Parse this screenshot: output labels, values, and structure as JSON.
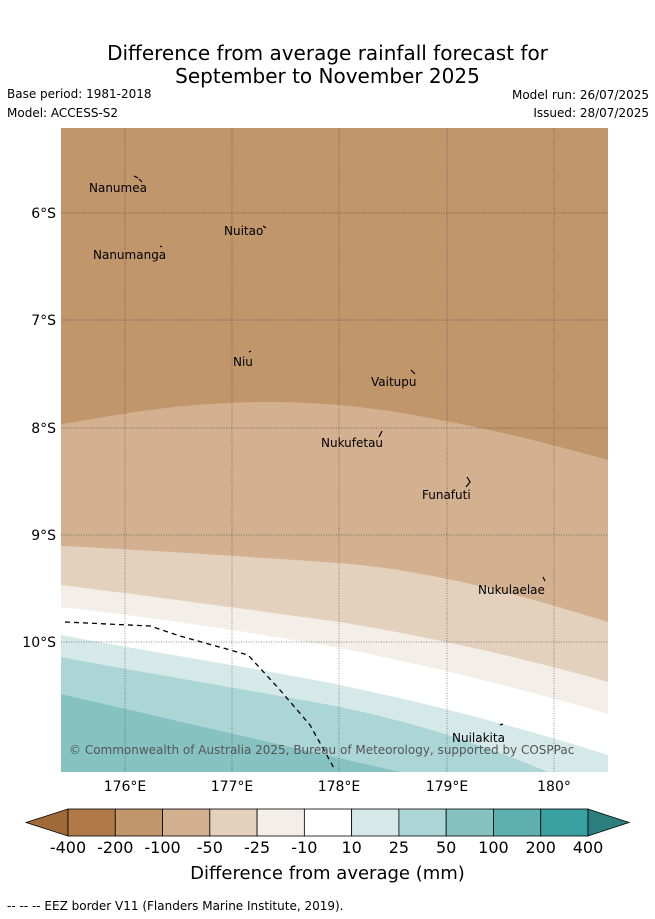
{
  "title_line1": "Difference from average rainfall forecast for",
  "title_line2": "September to November 2025",
  "base_period": "Base period: 1981-2018",
  "model": "Model: ACCESS-S2",
  "model_run": "Model run: 26/07/2025",
  "issued": "Issued: 28/07/2025",
  "lat_labels": [
    "6°S",
    "7°S",
    "8°S",
    "9°S",
    "10°S"
  ],
  "lon_labels": [
    "176°E",
    "177°E",
    "178°E",
    "179°E",
    "180°"
  ],
  "islands": [
    "Nanumea",
    "Nuitao",
    "Nanumanga",
    "Niu",
    "Vaitupu",
    "Nukufetau",
    "Funafuti",
    "Nukulaelae",
    "Nuilakita"
  ],
  "copyright": "© Commonwealth of Australia 2025, Bureau of Meteorology, supported by COSPPac",
  "colorbar": {
    "ticks": [
      "-400",
      "-200",
      "-100",
      "-50",
      "-25",
      "-10",
      "10",
      "25",
      "50",
      "100",
      "200",
      "400"
    ],
    "colors": [
      "#a06a38",
      "#b07a48",
      "#c0966a",
      "#d3b090",
      "#e3d0bd",
      "#f3eee8",
      "#ffffff",
      "#d6e9e9",
      "#acd6d6",
      "#86c2c2",
      "#5eb0b0",
      "#3aa0a0",
      "#2a7e7e"
    ],
    "label": "Difference from average (mm)"
  },
  "footnote": "-- -- -- EEZ border V11 (Flanders Marine Institute, 2019)."
}
